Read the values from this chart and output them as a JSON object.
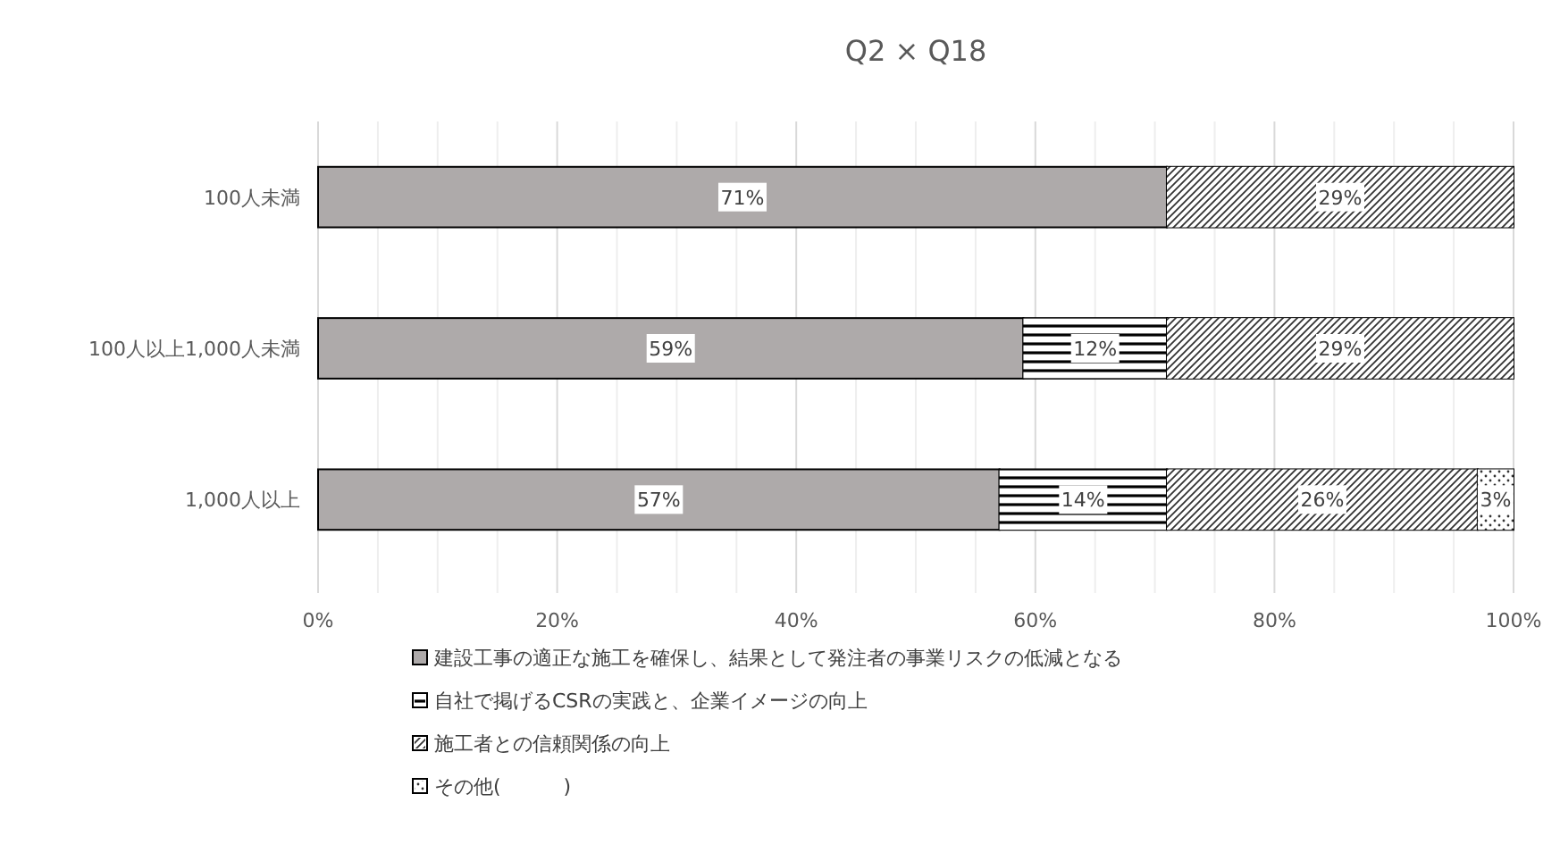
{
  "chart_data": {
    "type": "bar",
    "title": "Q2 × Q18",
    "orientation": "horizontal",
    "stacked": true,
    "categories": [
      "100人未満",
      "100人以上1,000人未満",
      "1,000人以上"
    ],
    "series": [
      {
        "name": "建設工事の適正な施工を確保し、結果として発注者の事業リスクの低減となる",
        "color": "#aeaaaa",
        "values": [
          71,
          59,
          57
        ],
        "value_labels": [
          "71%",
          "59%",
          "57%"
        ]
      },
      {
        "name": "自社で掲げるCSRの実践と、企業イメージの向上",
        "color": "#ffffff",
        "values": [
          0,
          12,
          14
        ],
        "value_labels": [
          null,
          "12%",
          "14%"
        ]
      },
      {
        "name": "施工者との信頼関係の向上",
        "color": "#ffffff",
        "values": [
          29,
          29,
          26
        ],
        "value_labels": [
          "29%",
          "29%",
          "26%"
        ]
      },
      {
        "name": "その他(          )",
        "color": "#ffffff",
        "values": [
          0,
          0,
          3
        ],
        "value_labels": [
          null,
          null,
          "3%"
        ]
      }
    ],
    "xlim": [
      0,
      100
    ],
    "xticks": [
      {
        "value": 0,
        "label": "0%"
      },
      {
        "value": 5,
        "label": null
      },
      {
        "value": 10,
        "label": null
      },
      {
        "value": 15,
        "label": null
      },
      {
        "value": 20,
        "label": "20%"
      },
      {
        "value": 25,
        "label": null
      },
      {
        "value": 30,
        "label": null
      },
      {
        "value": 35,
        "label": null
      },
      {
        "value": 40,
        "label": "40%"
      },
      {
        "value": 45,
        "label": null
      },
      {
        "value": 50,
        "label": null
      },
      {
        "value": 55,
        "label": null
      },
      {
        "value": 60,
        "label": "60%"
      },
      {
        "value": 65,
        "label": null
      },
      {
        "value": 70,
        "label": null
      },
      {
        "value": 75,
        "label": null
      },
      {
        "value": 80,
        "label": "80%"
      },
      {
        "value": 85,
        "label": null
      },
      {
        "value": 90,
        "label": null
      },
      {
        "value": 95,
        "label": null
      },
      {
        "value": 100,
        "label": "100%"
      }
    ],
    "grid": "x",
    "legend": "bottom"
  }
}
